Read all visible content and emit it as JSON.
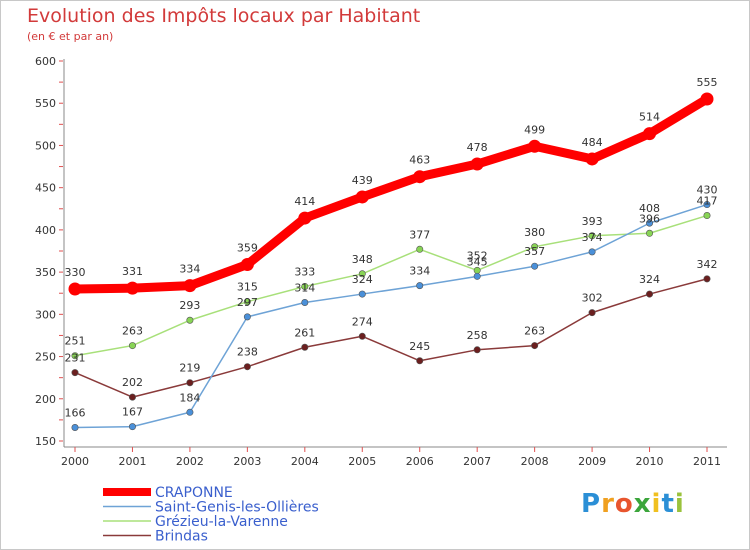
{
  "title": "Evolution des Impôts locaux par Habitant",
  "subtitle": "(en € et par an)",
  "brand": {
    "letters": [
      "P",
      "r",
      "o",
      "x",
      "i",
      "t",
      "i"
    ],
    "colors": [
      "#2b8fd6",
      "#f0a020",
      "#e8552e",
      "#3ba53b",
      "#f0c020",
      "#2b8fd6",
      "#9ac23c"
    ]
  },
  "chart_data": {
    "type": "line",
    "title": "Evolution des Impôts locaux par Habitant",
    "subtitle": "(en € et par an)",
    "xlabel": "",
    "ylabel": "",
    "x": [
      "2000",
      "2001",
      "2002",
      "2003",
      "2004",
      "2005",
      "2006",
      "2007",
      "2008",
      "2009",
      "2010",
      "2011"
    ],
    "ylim": [
      150,
      600
    ],
    "yticks": [
      150,
      200,
      250,
      300,
      350,
      400,
      450,
      500,
      550,
      600
    ],
    "grid": false,
    "legend_position": "bottom",
    "series": [
      {
        "name": "CRAPONNE",
        "color": "#ff0000",
        "emphasis": true,
        "values": [
          330,
          331,
          334,
          359,
          414,
          439,
          463,
          478,
          499,
          484,
          514,
          555
        ]
      },
      {
        "name": "Saint-Genis-les-Ollières",
        "color": "#6ea3d6",
        "marker": "#4a90d9",
        "values": [
          166,
          167,
          184,
          297,
          314,
          324,
          334,
          345,
          357,
          374,
          408,
          430
        ]
      },
      {
        "name": "Grézieu-la-Varenne",
        "color": "#a8e07a",
        "marker": "#88d455",
        "values": [
          251,
          263,
          293,
          315,
          333,
          348,
          377,
          352,
          380,
          393,
          396,
          417
        ]
      },
      {
        "name": "Brindas",
        "color": "#8a3a3a",
        "marker": "#6b1f1f",
        "values": [
          231,
          202,
          219,
          238,
          261,
          274,
          245,
          258,
          263,
          302,
          324,
          342
        ]
      }
    ],
    "labels_shown": {
      "CRAPONNE": [
        330,
        331,
        334,
        359,
        414,
        439,
        463,
        478,
        499,
        484,
        514,
        555
      ],
      "Saint-Genis-les-Ollières": [
        166,
        167,
        184,
        297,
        314,
        324,
        334,
        345,
        357,
        374,
        408,
        430
      ],
      "Grézieu-la-Varenne": [
        251,
        263,
        293,
        315,
        333,
        348,
        377,
        352,
        380,
        393,
        396,
        417
      ],
      "Brindas": [
        231,
        202,
        219,
        238,
        261,
        274,
        245,
        258,
        263,
        302,
        324,
        342
      ]
    }
  }
}
